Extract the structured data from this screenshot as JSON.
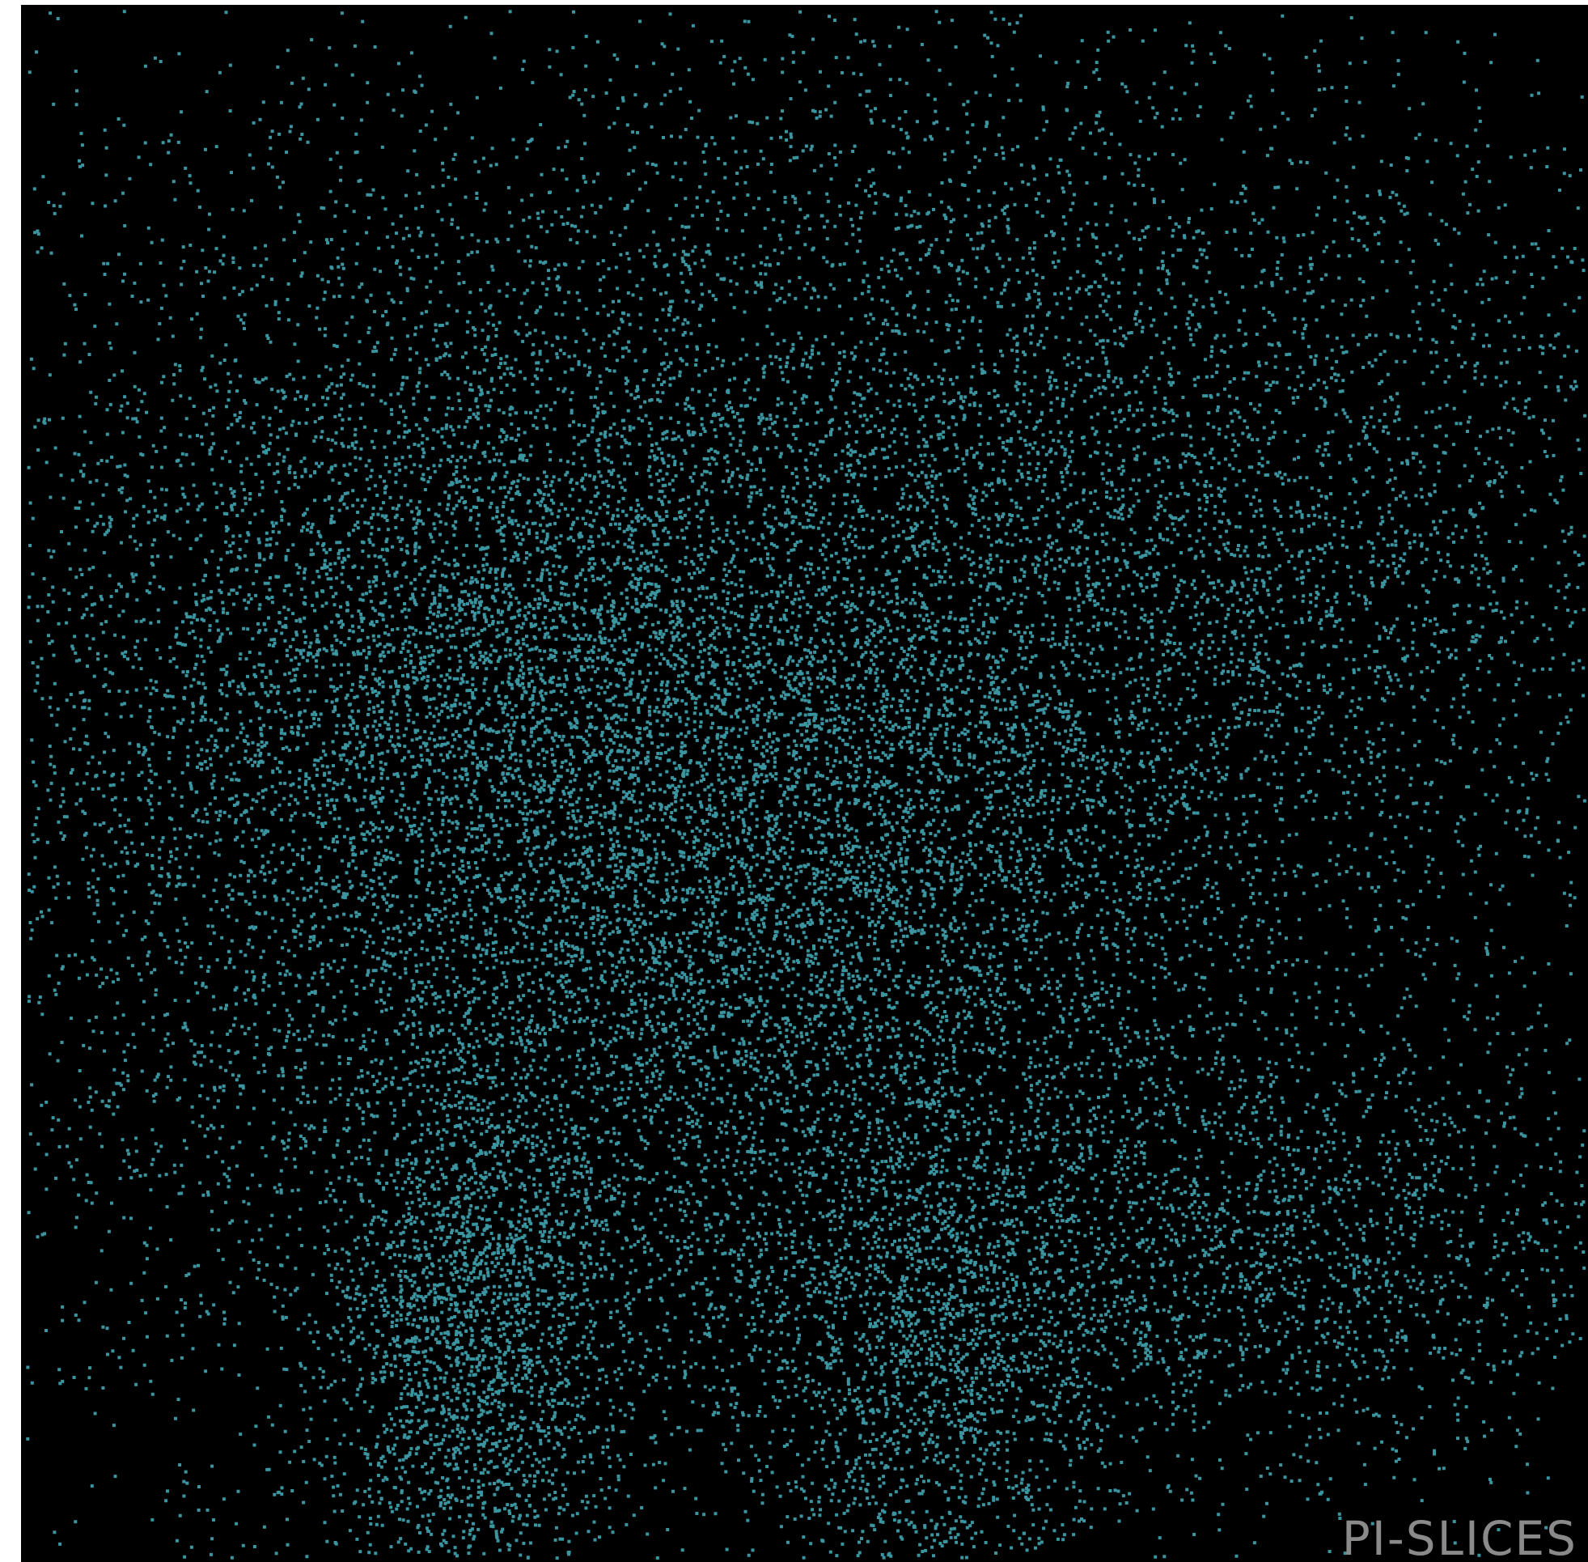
{
  "watermark": "PI-SLICES"
}
